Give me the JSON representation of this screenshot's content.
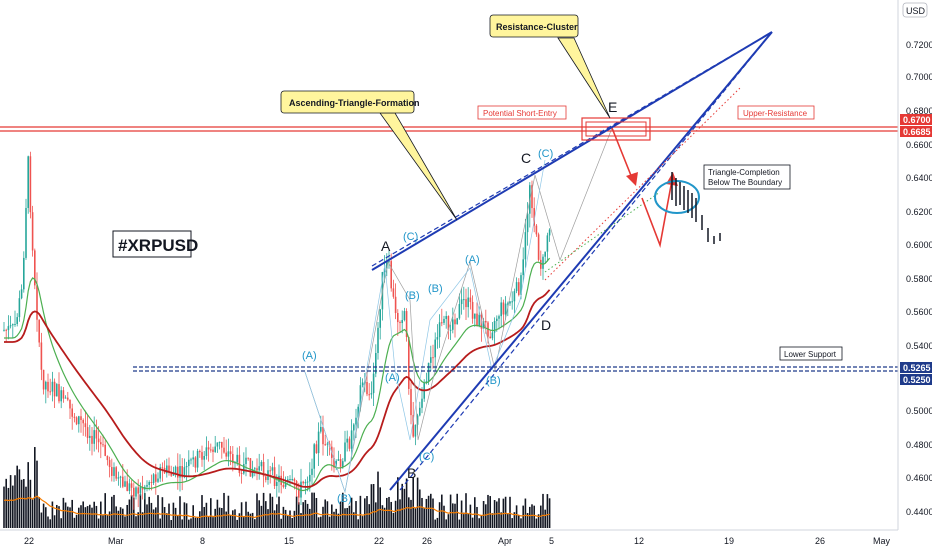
{
  "currency_label": "USD",
  "symbol_label": "#XRPUSD",
  "chart_data": {
    "type": "candlestick",
    "ylim": [
      0.436,
      0.736
    ],
    "y_ticks": [
      "0.7200",
      "0.7000",
      "0.6800",
      "0.6600",
      "0.6400",
      "0.6200",
      "0.6000",
      "0.5800",
      "0.5600",
      "0.5400",
      "0.5000",
      "0.4800",
      "0.4600",
      "0.4400"
    ],
    "x_ticks": [
      "22",
      "Mar",
      "8",
      "15",
      "22",
      "26",
      "Apr",
      "5",
      "12",
      "19",
      "26",
      "May"
    ],
    "price_badges": [
      {
        "label": "0.6700",
        "color": "#e53935"
      },
      {
        "label": "0.6685",
        "color": "#e53935"
      },
      {
        "label": "0.5265",
        "color": "#1e3a8a"
      },
      {
        "label": "0.5250",
        "color": "#1e3a8a"
      }
    ],
    "wave_labels": [
      "(A)",
      "(B)",
      "(C)",
      "(A)",
      "(B)",
      "(C)",
      "(A)",
      "(B)",
      "(C)",
      "(B)"
    ],
    "wave_labels_major": [
      "A",
      "B",
      "C",
      "D",
      "E"
    ],
    "annotations": {
      "triangle_callout": "Ascending-Triangle-Formation",
      "resistance_callout": "Resistance-Cluster",
      "short_entry": "Potential Short-Entry",
      "upper_resistance": "Upper-Resistance",
      "lower_support": "Lower Support",
      "completion_line1": "Triangle-Completion",
      "completion_line2": "Below The Boundary"
    },
    "colors": {
      "up": "#26a69a",
      "down": "#ef5350",
      "volume": "#131722",
      "ma_red": "#b71c1c",
      "ma_green": "#4caf50",
      "trendline": "#1e3bb3",
      "resistance": "#e53935",
      "support": "#1e3a8a"
    }
  }
}
